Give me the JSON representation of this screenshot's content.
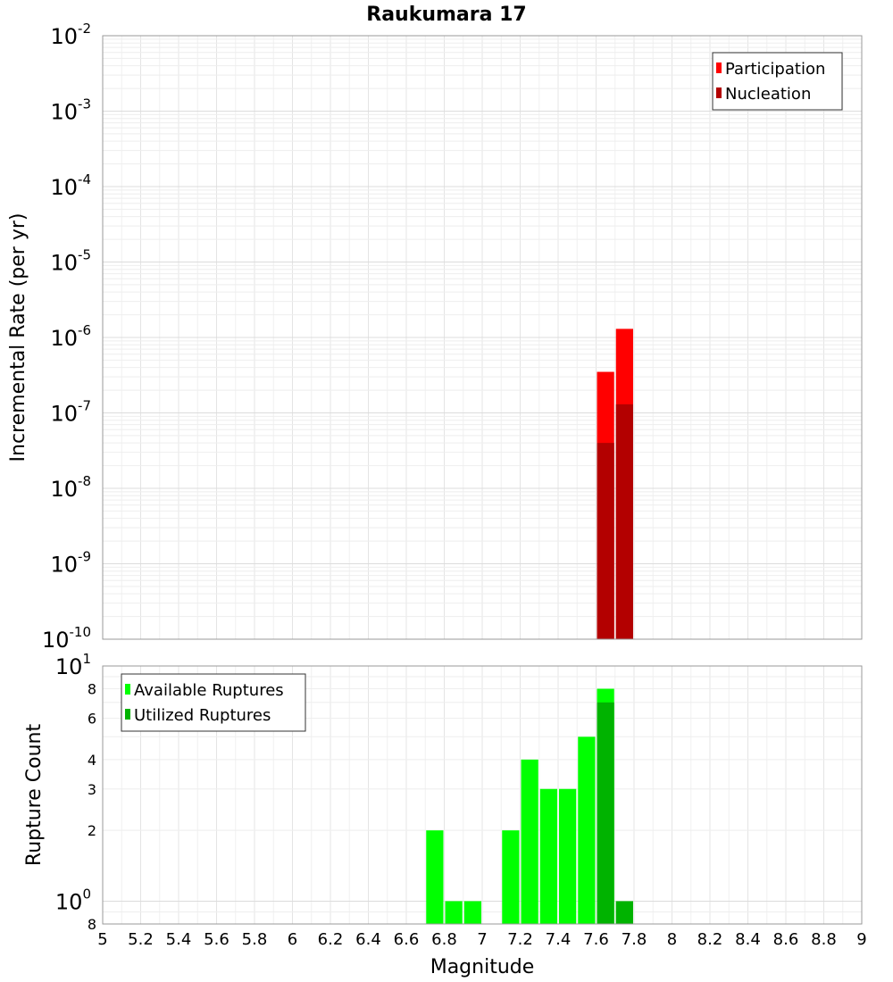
{
  "chart_data": [
    {
      "type": "bar",
      "title": "Raukumara 17",
      "xlabel": "Magnitude",
      "ylabel": "Incremental Rate (per yr)",
      "yscale": "log",
      "xlim": [
        5,
        9
      ],
      "ylim": [
        1e-10,
        0.01
      ],
      "grid": true,
      "legend_position": "top-right",
      "ytick_labels": [
        {
          "base": "10",
          "exp": "-10",
          "value": 1e-10
        },
        {
          "base": "10",
          "exp": "-9",
          "value": 1e-09
        },
        {
          "base": "10",
          "exp": "-8",
          "value": 1e-08
        },
        {
          "base": "10",
          "exp": "-7",
          "value": 1e-07
        },
        {
          "base": "10",
          "exp": "-6",
          "value": 1e-06
        },
        {
          "base": "10",
          "exp": "-5",
          "value": 1e-05
        },
        {
          "base": "10",
          "exp": "-4",
          "value": 0.0001
        },
        {
          "base": "10",
          "exp": "-3",
          "value": 0.001
        },
        {
          "base": "10",
          "exp": "-2",
          "value": 0.01
        }
      ],
      "bar_width": 0.1,
      "series": [
        {
          "name": "Participation",
          "color": "#ff0000",
          "x": [
            7.65,
            7.75
          ],
          "values": [
            3.5e-07,
            1.3e-06
          ]
        },
        {
          "name": "Nucleation",
          "color": "#b30000",
          "x": [
            7.65,
            7.75
          ],
          "values": [
            4e-08,
            1.3e-07
          ]
        }
      ]
    },
    {
      "type": "bar",
      "xlabel": "Magnitude",
      "ylabel": "Rupture Count",
      "yscale": "log",
      "xlim": [
        5,
        9
      ],
      "ylim": [
        0.8,
        10
      ],
      "grid": true,
      "legend_position": "top-left",
      "ytick_labels": [
        {
          "base": "8",
          "exp": "",
          "value": 0.8
        },
        {
          "base": "10",
          "exp": "0",
          "value": 1
        },
        {
          "base": "2",
          "exp": "",
          "value": 2
        },
        {
          "base": "3",
          "exp": "",
          "value": 3
        },
        {
          "base": "4",
          "exp": "",
          "value": 4
        },
        {
          "base": "6",
          "exp": "",
          "value": 6
        },
        {
          "base": "8",
          "exp": "",
          "value": 8
        },
        {
          "base": "10",
          "exp": "1",
          "value": 10
        }
      ],
      "xticks": [
        "5",
        "5.2",
        "5.4",
        "5.6",
        "5.8",
        "6",
        "6.2",
        "6.4",
        "6.6",
        "6.8",
        "7",
        "7.2",
        "7.4",
        "7.6",
        "7.8",
        "8",
        "8.2",
        "8.4",
        "8.6",
        "8.8",
        "9"
      ],
      "bar_width": 0.1,
      "series": [
        {
          "name": "Available Ruptures",
          "color": "#00ff00",
          "x": [
            6.75,
            6.85,
            6.95,
            7.15,
            7.25,
            7.35,
            7.45,
            7.55,
            7.65,
            7.75
          ],
          "values": [
            2,
            1,
            1,
            2,
            4,
            3,
            3,
            5,
            8,
            1
          ]
        },
        {
          "name": "Utilized Ruptures",
          "color": "#00b300",
          "x": [
            7.65,
            7.75
          ],
          "values": [
            7,
            1
          ]
        }
      ]
    }
  ]
}
